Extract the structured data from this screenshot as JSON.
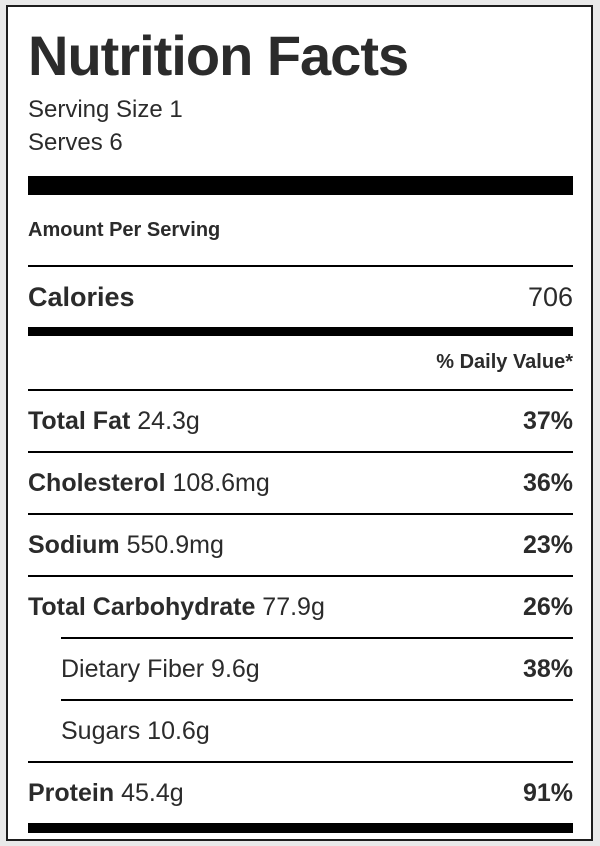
{
  "nutrition": {
    "title": "Nutrition Facts",
    "serving_size": "Serving Size 1",
    "serves": "Serves 6",
    "amount_per_serving": "Amount Per Serving",
    "calories": {
      "label": "Calories",
      "value": "706"
    },
    "daily_value_header": "% Daily Value*",
    "nutrients": [
      {
        "name": "Total Fat",
        "amount": "24.3g",
        "daily_value": "37%",
        "indent": false
      },
      {
        "name": "Cholesterol",
        "amount": "108.6mg",
        "daily_value": "36%",
        "indent": false
      },
      {
        "name": "Sodium",
        "amount": "550.9mg",
        "daily_value": "23%",
        "indent": false
      },
      {
        "name": "Total Carbohydrate",
        "amount": "77.9g",
        "daily_value": "26%",
        "indent": false
      },
      {
        "name": "Dietary Fiber",
        "amount": "9.6g",
        "daily_value": "38%",
        "indent": true
      },
      {
        "name": "Sugars",
        "amount": "10.6g",
        "daily_value": "",
        "indent": true
      },
      {
        "name": "Protein",
        "amount": "45.4g",
        "daily_value": "91%",
        "indent": false
      }
    ]
  },
  "colors": {
    "text": "#2b2b2b",
    "rule": "#000000",
    "label_background": "#ffffff",
    "page_background": "#e9e9e9"
  }
}
